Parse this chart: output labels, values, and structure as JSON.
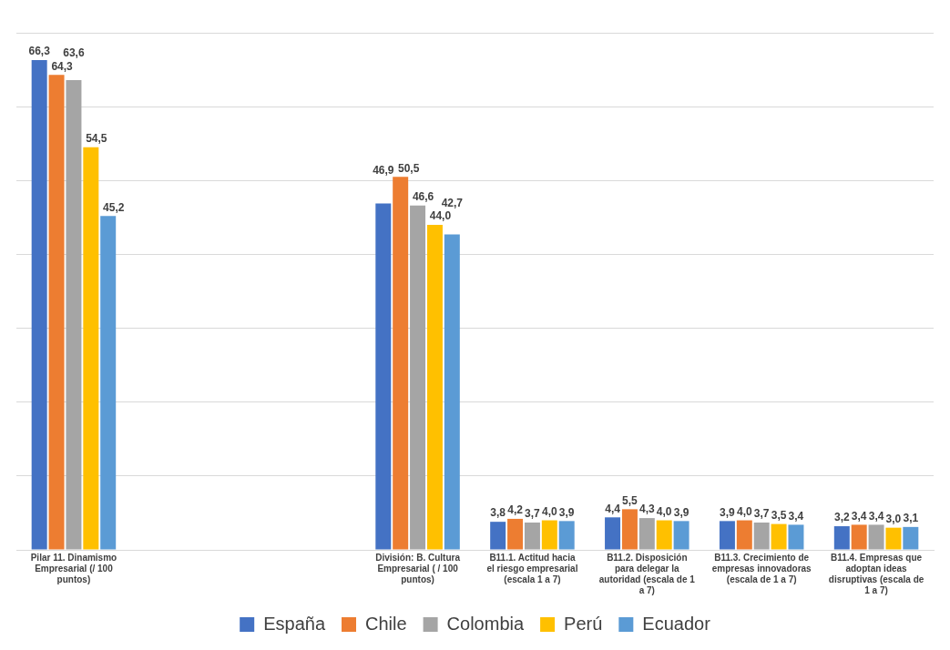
{
  "chart_data": {
    "type": "bar",
    "categories": [
      "Pilar 11. Dinamismo Empresarial (/ 100 puntos)",
      null,
      null,
      "División: B. Cultura Empresarial ( / 100 puntos)",
      "B11.1. Actitud hacia el riesgo empresarial (escala 1 a 7)",
      "B11.2. Disposición para delegar la autoridad (escala de 1 a 7)",
      "B11.3. Crecimiento de empresas innovadoras (escala de 1 a 7)",
      "B11.4. Empresas que adoptan ideas disruptivas (escala de 1 a 7)"
    ],
    "series": [
      {
        "name": "España",
        "color": "#4472c4",
        "values": [
          66.3,
          null,
          null,
          46.9,
          3.8,
          4.4,
          3.9,
          3.2
        ],
        "value_labels": [
          "66,3",
          null,
          null,
          "46,9",
          "3,8",
          "4,4",
          "3,9",
          "3,2"
        ]
      },
      {
        "name": "Chile",
        "color": "#ed7d31",
        "values": [
          64.3,
          null,
          null,
          50.5,
          4.2,
          5.5,
          4.0,
          3.4
        ],
        "value_labels": [
          "64,3",
          null,
          null,
          "50,5",
          "4,2",
          "5,5",
          "4,0",
          "3,4"
        ]
      },
      {
        "name": "Colombia",
        "color": "#a5a5a5",
        "values": [
          63.6,
          null,
          null,
          46.6,
          3.7,
          4.3,
          3.7,
          3.4
        ],
        "value_labels": [
          "63,6",
          null,
          null,
          "46,6",
          "3,7",
          "4,3",
          "3,7",
          "3,4"
        ]
      },
      {
        "name": "Perú",
        "color": "#ffc000",
        "values": [
          54.5,
          null,
          null,
          44.0,
          4.0,
          4.0,
          3.5,
          3.0
        ],
        "value_labels": [
          "54,5",
          null,
          null,
          "44,0",
          "4,0",
          "4,0",
          "3,5",
          "3,0"
        ]
      },
      {
        "name": "Ecuador",
        "color": "#5b9bd5",
        "values": [
          45.2,
          null,
          null,
          42.7,
          3.9,
          3.9,
          3.4,
          3.1
        ],
        "value_labels": [
          "45,2",
          null,
          null,
          "42,7",
          "3,9",
          "3,9",
          "3,4",
          "3,1"
        ]
      }
    ],
    "ylim": [
      0,
      70
    ],
    "yticks": [
      {
        "value": 0,
        "label": null
      },
      {
        "value": 10,
        "label": null
      },
      {
        "value": 20,
        "label": null
      },
      {
        "value": 30,
        "label": null
      },
      {
        "value": 40,
        "label": null
      },
      {
        "value": 50,
        "label": null
      },
      {
        "value": 60,
        "label": null
      },
      {
        "value": 70,
        "label": null
      }
    ],
    "tick_labels": "x",
    "grid": "y",
    "legend": "bottom"
  }
}
